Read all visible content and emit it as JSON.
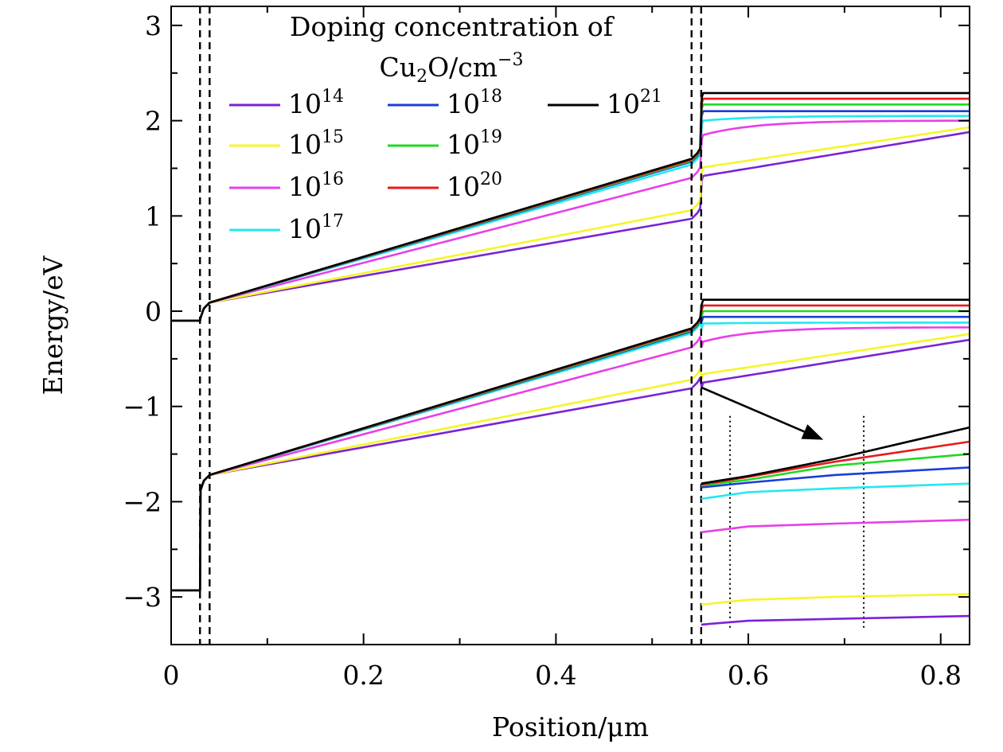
{
  "chart_data": {
    "type": "line",
    "xlabel": "Position/μm",
    "ylabel": "Energy/eV",
    "xlim": [
      0,
      0.83
    ],
    "ylim": [
      -3.5,
      3.2
    ],
    "x_ticks": [
      0,
      0.2,
      0.4,
      0.6,
      0.8
    ],
    "x_tick_labels": [
      "0",
      "0.2",
      "0.4",
      "0.6",
      "0.8"
    ],
    "y_ticks": [
      -3,
      -2,
      -1,
      0,
      1,
      2,
      3
    ],
    "y_tick_labels": [
      "−3",
      "−2",
      "−1",
      "0",
      "1",
      "2",
      "3"
    ],
    "legend": {
      "title_line1": "Doping concentration of",
      "title_line2_base": "Cu",
      "title_line2_sub": "2",
      "title_line2_mid": "O/cm",
      "title_line2_sup": "−3",
      "placement": "top-center",
      "columns": 3
    },
    "series": [
      {
        "exp": "14",
        "color": "#7b22d6",
        "cb": {
          "ox_left": -0.1,
          "tl_left": 0.09,
          "tl_right": 1.03,
          "ab_left": 1.42,
          "ab_right": 1.88
        },
        "vb": {
          "ox_left": -2.93,
          "tl_left": -1.72,
          "tl_right": -0.75,
          "ab_left": -0.75,
          "ab_right": -0.3
        },
        "inset": [
          -3.29,
          -3.25,
          -3.23,
          -3.2
        ]
      },
      {
        "exp": "15",
        "color": "#f5f52a",
        "cb": {
          "ox_left": -0.1,
          "tl_left": 0.09,
          "tl_right": 1.12,
          "ab_left": 1.51,
          "ab_right": 1.93
        },
        "vb": {
          "ox_left": -2.93,
          "tl_left": -1.72,
          "tl_right": -0.66,
          "ab_left": -0.66,
          "ab_right": -0.24
        },
        "inset": [
          -3.08,
          -3.03,
          -3.0,
          -2.97
        ]
      },
      {
        "exp": "16",
        "color": "#e83ee8",
        "cb": {
          "ox_left": -0.1,
          "tl_left": 0.09,
          "tl_right": 1.46,
          "ab_left": 1.85,
          "ab_right": 2.0
        },
        "vb": {
          "ox_left": -2.93,
          "tl_left": -1.72,
          "tl_right": -0.32,
          "ab_left": -0.32,
          "ab_right": -0.17
        },
        "inset": [
          -2.32,
          -2.26,
          -2.23,
          -2.19
        ]
      },
      {
        "exp": "17",
        "color": "#22e8f0",
        "cb": {
          "ox_left": -0.1,
          "tl_left": 0.09,
          "tl_right": 1.6,
          "ab_left": 2.0,
          "ab_right": 2.05
        },
        "vb": {
          "ox_left": -2.93,
          "tl_left": -1.72,
          "tl_right": -0.17,
          "ab_left": -0.13,
          "ab_right": -0.12
        },
        "inset": [
          -1.97,
          -1.9,
          -1.86,
          -1.81
        ]
      },
      {
        "exp": "18",
        "color": "#1a3ed8",
        "cb": {
          "ox_left": -0.1,
          "tl_left": 0.09,
          "tl_right": 1.63,
          "ab_left": 2.1,
          "ab_right": 2.1
        },
        "vb": {
          "ox_left": -2.93,
          "tl_left": -1.72,
          "tl_right": -0.15,
          "ab_left": -0.06,
          "ab_right": -0.06
        },
        "inset": [
          -1.85,
          -1.8,
          -1.72,
          -1.64
        ]
      },
      {
        "exp": "19",
        "color": "#22d822",
        "cb": {
          "ox_left": -0.1,
          "tl_left": 0.09,
          "tl_right": 1.64,
          "ab_left": 2.17,
          "ab_right": 2.17
        },
        "vb": {
          "ox_left": -2.93,
          "tl_left": -1.72,
          "tl_right": -0.14,
          "ab_left": 0.0,
          "ab_right": 0.0
        },
        "inset": [
          -1.83,
          -1.77,
          -1.62,
          -1.5
        ]
      },
      {
        "exp": "20",
        "color": "#e81a1a",
        "cb": {
          "ox_left": -0.1,
          "tl_left": 0.09,
          "tl_right": 1.65,
          "ab_left": 2.23,
          "ab_right": 2.23
        },
        "vb": {
          "ox_left": -2.93,
          "tl_left": -1.72,
          "tl_right": -0.13,
          "ab_left": 0.06,
          "ab_right": 0.06
        },
        "inset": [
          -1.82,
          -1.74,
          -1.58,
          -1.37
        ]
      },
      {
        "exp": "21",
        "color": "#000000",
        "cb": {
          "ox_left": -0.1,
          "tl_left": 0.09,
          "tl_right": 1.66,
          "ab_left": 2.29,
          "ab_right": 2.29
        },
        "vb": {
          "ox_left": -2.93,
          "tl_left": -1.72,
          "tl_right": -0.12,
          "ab_left": 0.12,
          "ab_right": 0.12
        },
        "inset": [
          -1.81,
          -1.73,
          -1.55,
          -1.22
        ]
      }
    ],
    "interfaces": [
      0.03,
      0.04,
      0.541,
      0.551
    ],
    "inset": {
      "x_points": [
        0.551,
        0.6,
        0.69,
        0.83
      ],
      "markers": [
        0.581,
        0.72
      ],
      "marker_ylim": [
        -3.35,
        -1.1
      ],
      "arrow_from": [
        0.551,
        -0.8
      ],
      "arrow_to": [
        0.678,
        -1.35
      ]
    },
    "base": "10",
    "grid": false
  }
}
